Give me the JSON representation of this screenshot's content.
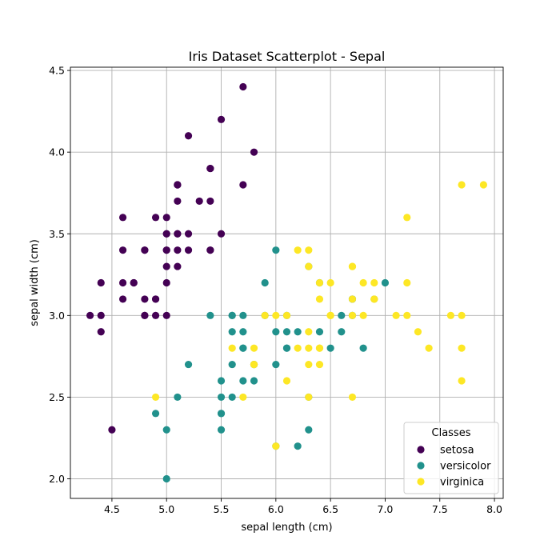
{
  "chart_data": {
    "type": "scatter",
    "title": "Iris Dataset Scatterplot - Sepal",
    "xlabel": "sepal length (cm)",
    "ylabel": "sepal width (cm)",
    "xlim": [
      4.12,
      8.08
    ],
    "ylim": [
      1.88,
      4.52
    ],
    "xticks": [
      4.5,
      5.0,
      5.5,
      6.0,
      6.5,
      7.0,
      7.5,
      8.0
    ],
    "xtick_labels": [
      "4.5",
      "5.0",
      "5.5",
      "6.0",
      "6.5",
      "7.0",
      "7.5",
      "8.0"
    ],
    "yticks": [
      2.0,
      2.5,
      3.0,
      3.5,
      4.0,
      4.5
    ],
    "ytick_labels": [
      "2.0",
      "2.5",
      "3.0",
      "3.5",
      "4.0",
      "4.5"
    ],
    "grid": true,
    "legend": {
      "title": "Classes",
      "placement": "lower-right"
    },
    "series": [
      {
        "name": "setosa",
        "color": "#440154",
        "points": [
          [
            5.1,
            3.5
          ],
          [
            4.9,
            3.0
          ],
          [
            4.7,
            3.2
          ],
          [
            4.6,
            3.1
          ],
          [
            5.0,
            3.6
          ],
          [
            5.4,
            3.9
          ],
          [
            4.6,
            3.4
          ],
          [
            5.0,
            3.4
          ],
          [
            4.4,
            2.9
          ],
          [
            4.9,
            3.1
          ],
          [
            5.4,
            3.7
          ],
          [
            4.8,
            3.4
          ],
          [
            4.8,
            3.0
          ],
          [
            4.3,
            3.0
          ],
          [
            5.8,
            4.0
          ],
          [
            5.7,
            4.4
          ],
          [
            5.4,
            3.9
          ],
          [
            5.1,
            3.5
          ],
          [
            5.7,
            3.8
          ],
          [
            5.1,
            3.8
          ],
          [
            5.4,
            3.4
          ],
          [
            5.1,
            3.7
          ],
          [
            4.6,
            3.6
          ],
          [
            5.1,
            3.3
          ],
          [
            4.8,
            3.4
          ],
          [
            5.0,
            3.0
          ],
          [
            5.0,
            3.4
          ],
          [
            5.2,
            3.5
          ],
          [
            5.2,
            3.4
          ],
          [
            4.7,
            3.2
          ],
          [
            4.8,
            3.1
          ],
          [
            5.4,
            3.4
          ],
          [
            5.2,
            4.1
          ],
          [
            5.5,
            4.2
          ],
          [
            4.9,
            3.1
          ],
          [
            5.0,
            3.2
          ],
          [
            5.5,
            3.5
          ],
          [
            4.9,
            3.6
          ],
          [
            4.4,
            3.0
          ],
          [
            5.1,
            3.4
          ],
          [
            5.0,
            3.5
          ],
          [
            4.5,
            2.3
          ],
          [
            4.4,
            3.2
          ],
          [
            5.0,
            3.5
          ],
          [
            5.1,
            3.8
          ],
          [
            4.8,
            3.0
          ],
          [
            5.1,
            3.8
          ],
          [
            4.6,
            3.2
          ],
          [
            5.3,
            3.7
          ],
          [
            5.0,
            3.3
          ]
        ]
      },
      {
        "name": "versicolor",
        "color": "#21918c",
        "points": [
          [
            7.0,
            3.2
          ],
          [
            6.4,
            3.2
          ],
          [
            6.9,
            3.1
          ],
          [
            5.5,
            2.3
          ],
          [
            6.5,
            2.8
          ],
          [
            5.7,
            2.8
          ],
          [
            6.3,
            3.3
          ],
          [
            4.9,
            2.4
          ],
          [
            6.6,
            2.9
          ],
          [
            5.2,
            2.7
          ],
          [
            5.0,
            2.0
          ],
          [
            5.9,
            3.0
          ],
          [
            6.0,
            2.2
          ],
          [
            6.1,
            2.9
          ],
          [
            5.6,
            2.9
          ],
          [
            6.7,
            3.1
          ],
          [
            5.6,
            3.0
          ],
          [
            5.8,
            2.7
          ],
          [
            6.2,
            2.2
          ],
          [
            5.6,
            2.5
          ],
          [
            5.9,
            3.2
          ],
          [
            6.1,
            2.8
          ],
          [
            6.3,
            2.5
          ],
          [
            6.1,
            2.8
          ],
          [
            6.4,
            2.9
          ],
          [
            6.6,
            3.0
          ],
          [
            6.8,
            2.8
          ],
          [
            6.7,
            3.0
          ],
          [
            6.0,
            2.9
          ],
          [
            5.7,
            2.6
          ],
          [
            5.5,
            2.4
          ],
          [
            5.5,
            2.4
          ],
          [
            5.8,
            2.7
          ],
          [
            6.0,
            2.7
          ],
          [
            5.4,
            3.0
          ],
          [
            6.0,
            3.4
          ],
          [
            6.7,
            3.1
          ],
          [
            6.3,
            2.3
          ],
          [
            5.6,
            3.0
          ],
          [
            5.5,
            2.5
          ],
          [
            5.5,
            2.6
          ],
          [
            6.1,
            3.0
          ],
          [
            5.8,
            2.6
          ],
          [
            5.0,
            2.3
          ],
          [
            5.6,
            2.7
          ],
          [
            5.7,
            3.0
          ],
          [
            5.7,
            2.9
          ],
          [
            6.2,
            2.9
          ],
          [
            5.1,
            2.5
          ],
          [
            5.7,
            2.8
          ]
        ]
      },
      {
        "name": "virginica",
        "color": "#fde725",
        "points": [
          [
            6.3,
            3.3
          ],
          [
            5.8,
            2.7
          ],
          [
            7.1,
            3.0
          ],
          [
            6.3,
            2.9
          ],
          [
            6.5,
            3.0
          ],
          [
            7.6,
            3.0
          ],
          [
            4.9,
            2.5
          ],
          [
            7.3,
            2.9
          ],
          [
            6.7,
            2.5
          ],
          [
            7.2,
            3.6
          ],
          [
            6.5,
            3.2
          ],
          [
            6.4,
            2.7
          ],
          [
            6.8,
            3.0
          ],
          [
            5.7,
            2.5
          ],
          [
            5.8,
            2.8
          ],
          [
            6.4,
            3.2
          ],
          [
            6.5,
            3.0
          ],
          [
            7.7,
            3.8
          ],
          [
            7.7,
            2.6
          ],
          [
            6.0,
            2.2
          ],
          [
            6.9,
            3.2
          ],
          [
            5.6,
            2.8
          ],
          [
            7.7,
            2.8
          ],
          [
            6.3,
            2.7
          ],
          [
            6.7,
            3.3
          ],
          [
            7.2,
            3.2
          ],
          [
            6.2,
            2.8
          ],
          [
            6.1,
            3.0
          ],
          [
            6.4,
            2.8
          ],
          [
            7.2,
            3.0
          ],
          [
            7.4,
            2.8
          ],
          [
            7.9,
            3.8
          ],
          [
            6.4,
            2.8
          ],
          [
            6.3,
            2.8
          ],
          [
            6.1,
            2.6
          ],
          [
            7.7,
            3.0
          ],
          [
            6.3,
            3.4
          ],
          [
            6.4,
            3.1
          ],
          [
            6.0,
            3.0
          ],
          [
            6.9,
            3.1
          ],
          [
            6.7,
            3.1
          ],
          [
            6.9,
            3.1
          ],
          [
            5.8,
            2.7
          ],
          [
            6.8,
            3.2
          ],
          [
            6.7,
            3.3
          ],
          [
            6.7,
            3.0
          ],
          [
            6.3,
            2.5
          ],
          [
            6.5,
            3.0
          ],
          [
            6.2,
            3.4
          ],
          [
            5.9,
            3.0
          ]
        ]
      }
    ]
  }
}
